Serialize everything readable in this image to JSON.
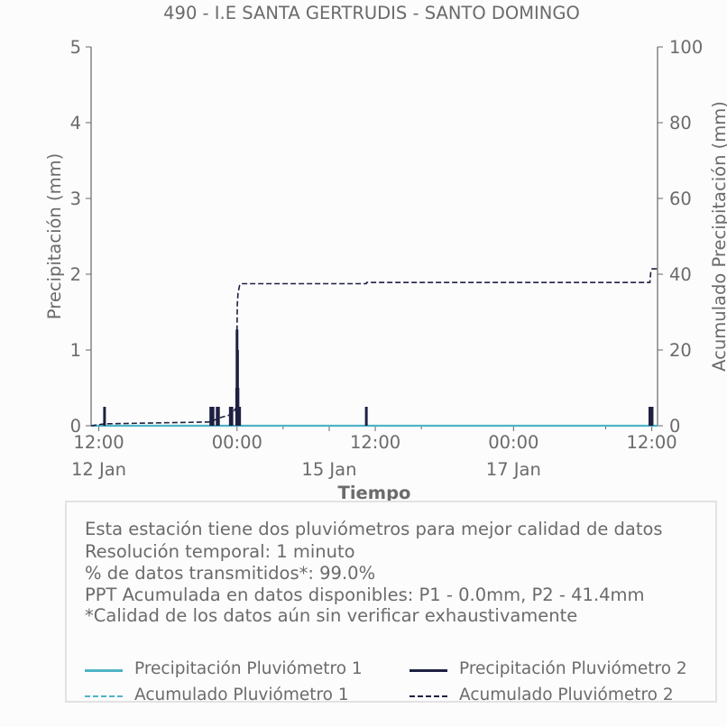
{
  "chart_data": {
    "type": "line",
    "title": "490 - I.E SANTA GERTRUDIS - SANTO DOMINGO",
    "xlabel": "Tiempo",
    "ylabel": "Precipitación (mm)",
    "y2label": "Acumulado Precipitación (mm)",
    "x_range": [
      "2024-01-12T10:00",
      "2024-01-18T13:30"
    ],
    "ylim": [
      0,
      5
    ],
    "y2lim": [
      0,
      100
    ],
    "x_ticks": [
      {
        "t": "2024-01-12T12:00",
        "label": "12:00",
        "sublabel": "12 Jan"
      },
      {
        "t": "2024-01-14T00:00",
        "label": "00:00",
        "sublabel": ""
      },
      {
        "t": "2024-01-14T12:00",
        "label": "",
        "sublabel": ""
      },
      {
        "t": "2024-01-15T00:00",
        "label": "",
        "sublabel": "15 Jan"
      },
      {
        "t": "2024-01-15T12:00",
        "label": "12:00",
        "sublabel": ""
      },
      {
        "t": "2024-01-16T00:00",
        "label": "",
        "sublabel": ""
      },
      {
        "t": "2024-01-17T00:00",
        "label": "00:00",
        "sublabel": "17 Jan"
      },
      {
        "t": "2024-01-18T00:00",
        "label": "",
        "sublabel": ""
      },
      {
        "t": "2024-01-18T12:00",
        "label": "12:00",
        "sublabel": ""
      }
    ],
    "y_ticks": [
      0,
      1,
      2,
      3,
      4,
      5
    ],
    "y2_ticks": [
      0,
      20,
      40,
      60,
      80,
      100
    ],
    "grid": false,
    "series": [
      {
        "name": "Precipitación Pluviómetro 1",
        "axis": "left",
        "style": "solid",
        "color": "#4fb3c6",
        "points": [
          [
            "2024-01-12T10:00",
            0
          ],
          [
            "2024-01-18T13:30",
            0
          ]
        ]
      },
      {
        "name": "Acumulado Pluviómetro 1",
        "axis": "right",
        "style": "dashed",
        "color": "#4fb3c6",
        "points": [
          [
            "2024-01-12T10:00",
            0
          ],
          [
            "2024-01-18T13:30",
            0
          ]
        ]
      },
      {
        "name": "Precipitación Pluviómetro 2",
        "axis": "left",
        "style": "bars",
        "color": "#1e2142",
        "points": [
          [
            "2024-01-12T13:30",
            0.25
          ],
          [
            "2024-01-13T17:10",
            0.25
          ],
          [
            "2024-01-13T17:45",
            0.25
          ],
          [
            "2024-01-13T18:50",
            0.25
          ],
          [
            "2024-01-13T19:10",
            0.25
          ],
          [
            "2024-01-13T22:15",
            0.25
          ],
          [
            "2024-01-13T22:40",
            0.25
          ],
          [
            "2024-01-13T23:55",
            0.5
          ],
          [
            "2024-01-14T00:00",
            1.27
          ],
          [
            "2024-01-14T00:08",
            1.0
          ],
          [
            "2024-01-14T00:15",
            0.5
          ],
          [
            "2024-01-14T00:25",
            0.25
          ],
          [
            "2024-01-14T00:40",
            0.25
          ],
          [
            "2024-01-15T09:40",
            0.25
          ],
          [
            "2024-01-18T11:30",
            0.25
          ],
          [
            "2024-01-18T11:45",
            0.25
          ],
          [
            "2024-01-18T12:05",
            0.25
          ]
        ]
      },
      {
        "name": "Acumulado Pluviómetro 2",
        "axis": "right",
        "style": "dashed",
        "color": "#1e2142",
        "points": [
          [
            "2024-01-12T10:00",
            0
          ],
          [
            "2024-01-12T13:30",
            0.5
          ],
          [
            "2024-01-13T17:10",
            1.0
          ],
          [
            "2024-01-13T19:10",
            2.0
          ],
          [
            "2024-01-13T22:40",
            3.0
          ],
          [
            "2024-01-13T23:55",
            5.0
          ],
          [
            "2024-01-14T00:00",
            26.0
          ],
          [
            "2024-01-14T00:05",
            32.0
          ],
          [
            "2024-01-14T00:15",
            35.0
          ],
          [
            "2024-01-14T00:40",
            37.0
          ],
          [
            "2024-01-14T01:00",
            37.5
          ],
          [
            "2024-01-15T09:40",
            37.5
          ],
          [
            "2024-01-15T09:45",
            37.8
          ],
          [
            "2024-01-18T11:30",
            37.8
          ],
          [
            "2024-01-18T11:45",
            40.5
          ],
          [
            "2024-01-18T12:05",
            41.4
          ],
          [
            "2024-01-18T13:30",
            41.4
          ]
        ]
      }
    ]
  },
  "info": {
    "lines": [
      "Esta estación tiene dos pluviómetros para mejor calidad de datos",
      "Resolución temporal: 1 minuto",
      "% de datos transmitidos*: 99.0%",
      "PPT Acumulada en datos disponibles: P1 - 0.0mm, P2 - 41.4mm",
      "*Calidad de los datos aún sin verificar exhaustivamente"
    ]
  },
  "legend": {
    "p1": "Precipitación Pluviómetro 1",
    "p2": "Precipitación Pluviómetro 2",
    "a1": "Acumulado Pluviómetro 1",
    "a2": "Acumulado Pluviómetro 2"
  },
  "colors": {
    "p1": "#4fb3c6",
    "p2": "#1e2142",
    "axis": "#666666",
    "text": "#6b6b6b"
  }
}
